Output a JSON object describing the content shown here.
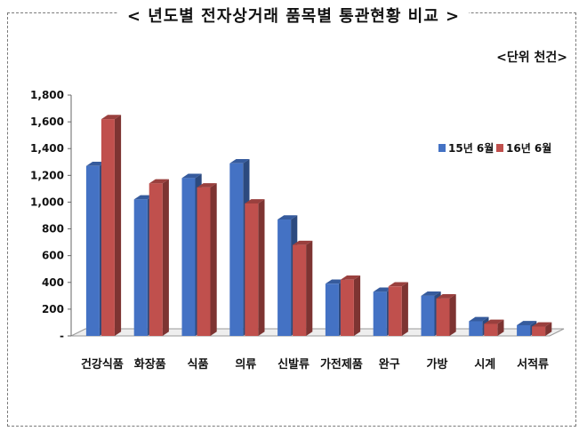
{
  "header": {
    "title": "< 년도별 전자상거래 품목별 통관현황 비교 >",
    "unit": "<단위 천건>"
  },
  "chart_data": {
    "type": "bar",
    "categories": [
      "건강식품",
      "화장품",
      "식품",
      "의류",
      "신발류",
      "가전제품",
      "완구",
      "가방",
      "시계",
      "서적류"
    ],
    "series": [
      {
        "name": "15년 6월",
        "values": [
          1270,
          1020,
          1180,
          1290,
          870,
          390,
          330,
          300,
          110,
          80
        ],
        "color": "#4472c4"
      },
      {
        "name": "16년 6월",
        "values": [
          1620,
          1140,
          1110,
          990,
          680,
          420,
          370,
          280,
          90,
          70
        ],
        "color": "#c0504d"
      }
    ],
    "ylim": [
      0,
      1800
    ],
    "yticks": [
      0,
      200,
      400,
      600,
      800,
      1000,
      1200,
      1400,
      1600,
      1800
    ],
    "ytick_labels": [
      "-",
      "200",
      "400",
      "600",
      "800",
      "1,000",
      "1,200",
      "1,400",
      "1,600",
      "1,800"
    ],
    "grid": false,
    "legend": "right",
    "xlabel": "",
    "ylabel": ""
  }
}
